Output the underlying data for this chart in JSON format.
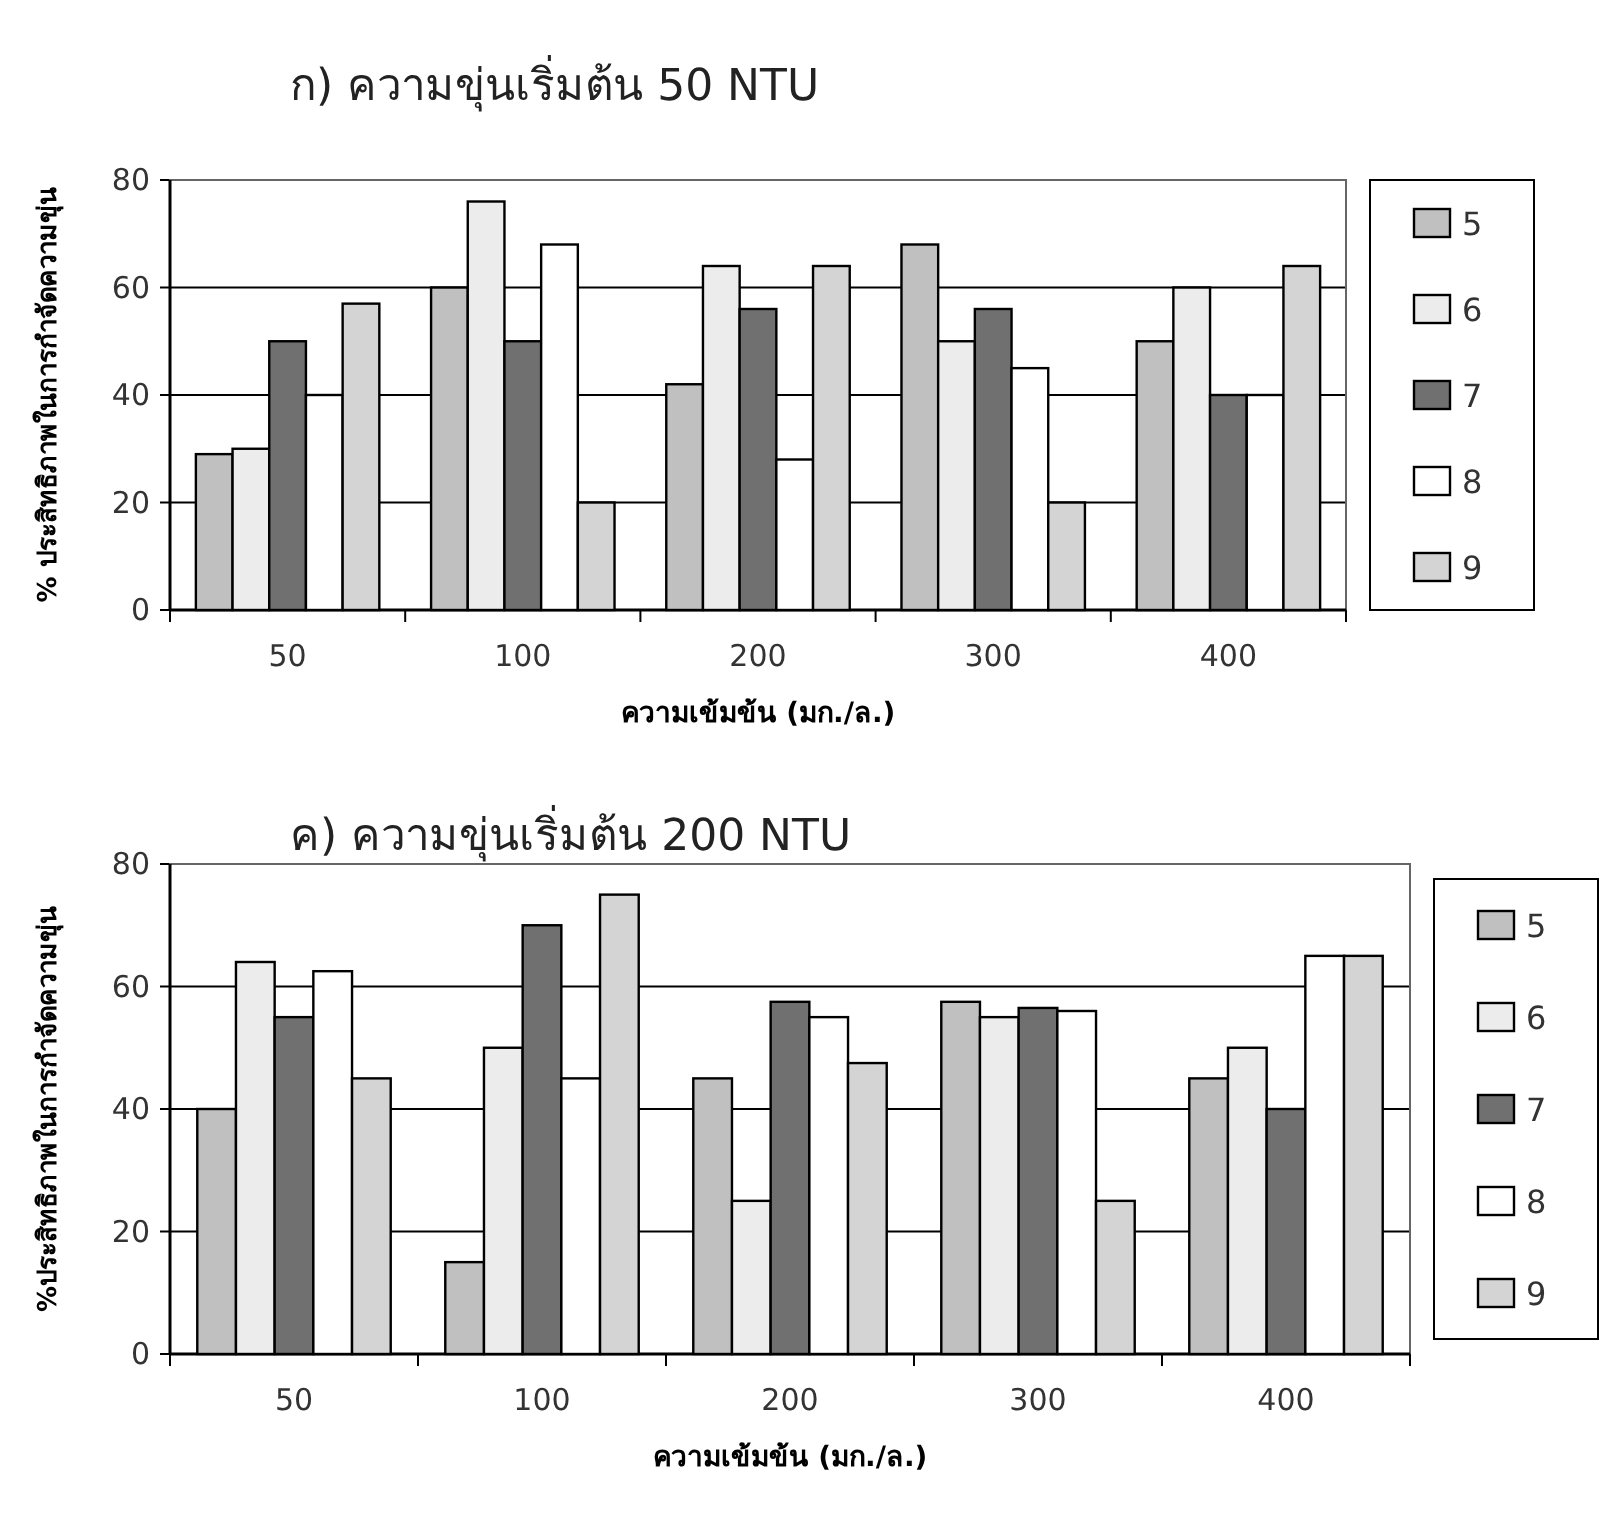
{
  "chart_data": [
    {
      "type": "bar",
      "title": "ก) ความขุ่นเริ่มต้น 50 NTU",
      "xlabel": "ความเข้มข้น (มก./ล.)",
      "ylabel": "% ประสิทธิภาพในการกำจัดความขุ่น",
      "categories": [
        "50",
        "100",
        "200",
        "300",
        "400"
      ],
      "series": [
        {
          "name": "5",
          "color": "#c0c0c0",
          "values": [
            29,
            60,
            42,
            68,
            50
          ]
        },
        {
          "name": "6",
          "color": "#ececec",
          "values": [
            30,
            76,
            64,
            50,
            60
          ]
        },
        {
          "name": "7",
          "color": "#707070",
          "values": [
            50,
            50,
            56,
            56,
            40
          ]
        },
        {
          "name": "8",
          "color": "#ffffff",
          "values": [
            40,
            68,
            28,
            45,
            40
          ]
        },
        {
          "name": "9",
          "color": "#d4d4d4",
          "values": [
            57,
            20,
            64,
            20,
            64
          ]
        }
      ],
      "ylim": [
        0,
        80
      ],
      "yticks": [
        0,
        20,
        40,
        60,
        80
      ],
      "grid": "y",
      "legend": "right"
    },
    {
      "type": "bar",
      "title": "ค) ความขุ่นเริ่มต้น 200 NTU",
      "xlabel": "ความเข้มข้น (มก./ล.)",
      "ylabel": "%ประสิทธิภาพในการกำจัดความขุ่น",
      "categories": [
        "50",
        "100",
        "200",
        "300",
        "400"
      ],
      "series": [
        {
          "name": "5",
          "color": "#c0c0c0",
          "values": [
            40,
            15,
            45,
            57.5,
            45
          ]
        },
        {
          "name": "6",
          "color": "#ececec",
          "values": [
            64,
            50,
            25,
            55,
            50
          ]
        },
        {
          "name": "7",
          "color": "#707070",
          "values": [
            55,
            70,
            57.5,
            56.5,
            40
          ]
        },
        {
          "name": "8",
          "color": "#ffffff",
          "values": [
            62.5,
            45,
            55,
            56,
            65
          ]
        },
        {
          "name": "9",
          "color": "#d4d4d4",
          "values": [
            45,
            75,
            47.5,
            25,
            65
          ]
        }
      ],
      "ylim": [
        0,
        80
      ],
      "yticks": [
        0,
        20,
        40,
        60,
        80
      ],
      "grid": "y",
      "legend": "right"
    }
  ]
}
